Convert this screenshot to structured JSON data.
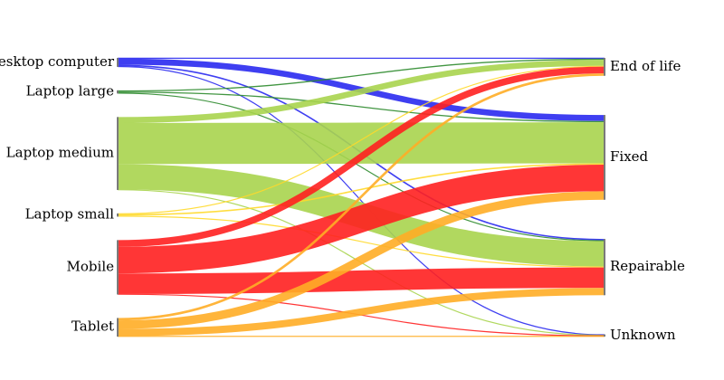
{
  "chart_data": {
    "type": "sankey",
    "title": "",
    "sources": [
      {
        "id": "desktop",
        "label": "Desktop computer",
        "color": "#2a2af0"
      },
      {
        "id": "laptop_large",
        "label": "Laptop large",
        "color": "#2e8b2e"
      },
      {
        "id": "laptop_medium",
        "label": "Laptop medium",
        "color": "#a8d44e"
      },
      {
        "id": "laptop_small",
        "label": "Laptop small",
        "color": "#ffd92a"
      },
      {
        "id": "mobile",
        "label": "Mobile",
        "color": "#ff2020"
      },
      {
        "id": "tablet",
        "label": "Tablet",
        "color": "#ffad26"
      }
    ],
    "targets": [
      {
        "id": "end_of_life",
        "label": "End of life"
      },
      {
        "id": "fixed",
        "label": "Fixed"
      },
      {
        "id": "repairable",
        "label": "Repairable"
      },
      {
        "id": "unknown",
        "label": "Unknown"
      }
    ],
    "links": [
      {
        "source": "desktop",
        "target": "end_of_life",
        "value": 0.3
      },
      {
        "source": "desktop",
        "target": "fixed",
        "value": 2.5
      },
      {
        "source": "desktop",
        "target": "repairable",
        "value": 0.6
      },
      {
        "source": "desktop",
        "target": "unknown",
        "value": 0.3
      },
      {
        "source": "laptop_large",
        "target": "end_of_life",
        "value": 0.5
      },
      {
        "source": "laptop_large",
        "target": "fixed",
        "value": 0.5
      },
      {
        "source": "laptop_large",
        "target": "repairable",
        "value": 0.3
      },
      {
        "source": "laptop_medium",
        "target": "end_of_life",
        "value": 2.5
      },
      {
        "source": "laptop_medium",
        "target": "fixed",
        "value": 17
      },
      {
        "source": "laptop_medium",
        "target": "repairable",
        "value": 10.5
      },
      {
        "source": "laptop_medium",
        "target": "unknown",
        "value": 0.2
      },
      {
        "source": "laptop_small",
        "target": "end_of_life",
        "value": 0.3
      },
      {
        "source": "laptop_small",
        "target": "fixed",
        "value": 0.6
      },
      {
        "source": "laptop_small",
        "target": "repairable",
        "value": 0.4
      },
      {
        "source": "mobile",
        "target": "end_of_life",
        "value": 2.8
      },
      {
        "source": "mobile",
        "target": "fixed",
        "value": 11
      },
      {
        "source": "mobile",
        "target": "repairable",
        "value": 8.5
      },
      {
        "source": "mobile",
        "target": "unknown",
        "value": 0.2
      },
      {
        "source": "tablet",
        "target": "end_of_life",
        "value": 1.0
      },
      {
        "source": "tablet",
        "target": "fixed",
        "value": 3.5
      },
      {
        "source": "tablet",
        "target": "repairable",
        "value": 3.0
      },
      {
        "source": "tablet",
        "target": "unknown",
        "value": 0.2
      }
    ]
  }
}
